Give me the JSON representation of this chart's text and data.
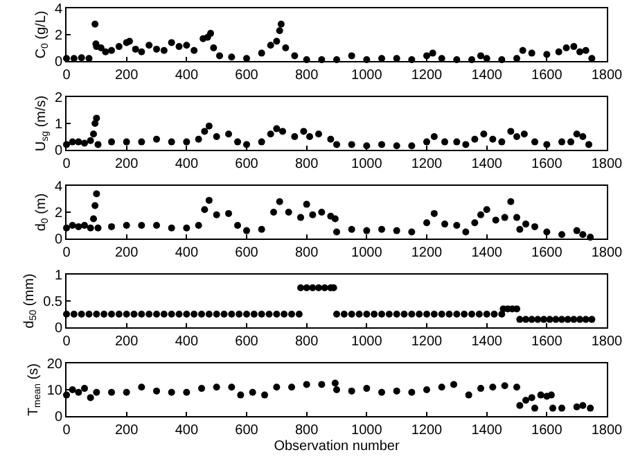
{
  "chart_data": [
    {
      "type": "scatter",
      "ylabel": "C$_{0}$ (g/L)",
      "xlim": [
        0,
        1800
      ],
      "xticks": [
        0,
        200,
        400,
        600,
        800,
        1000,
        1200,
        1400,
        1600,
        1800
      ],
      "ylim": [
        0,
        4
      ],
      "yticks": [
        0,
        2,
        4
      ],
      "marker": "circle",
      "series": [
        {
          "color": "#000000",
          "x": [
            0,
            25,
            50,
            75,
            95,
            98,
            100,
            115,
            130,
            150,
            175,
            200,
            210,
            230,
            250,
            275,
            300,
            325,
            350,
            375,
            400,
            425,
            455,
            470,
            480,
            490,
            510,
            550,
            600,
            650,
            680,
            700,
            710,
            715,
            730,
            760,
            800,
            850,
            900,
            950,
            1000,
            1050,
            1100,
            1150,
            1200,
            1220,
            1250,
            1300,
            1350,
            1380,
            1400,
            1450,
            1500,
            1520,
            1550,
            1600,
            1640,
            1665,
            1690,
            1710,
            1730,
            1750
          ],
          "values": [
            0.2,
            0.2,
            0.25,
            0.2,
            2.8,
            1.3,
            1.1,
            1.0,
            0.7,
            0.8,
            1.1,
            1.4,
            1.5,
            0.9,
            0.7,
            1.2,
            0.9,
            0.8,
            1.4,
            1.1,
            1.2,
            0.8,
            1.7,
            1.8,
            2.1,
            1.0,
            0.4,
            0.3,
            0.2,
            0.6,
            1.2,
            1.5,
            2.3,
            2.8,
            1.0,
            0.4,
            0.1,
            0.1,
            0.1,
            0.4,
            0.1,
            0.2,
            0.2,
            0.1,
            0.4,
            0.6,
            0.2,
            0.1,
            0.1,
            0.4,
            0.2,
            0.1,
            0.2,
            0.8,
            0.6,
            0.5,
            0.7,
            1.0,
            1.1,
            0.7,
            0.8,
            0.2
          ]
        }
      ]
    },
    {
      "type": "scatter",
      "ylabel": "U$_{sg}$ (m/s)",
      "xlim": [
        0,
        1800
      ],
      "xticks": [
        0,
        200,
        400,
        600,
        800,
        1000,
        1200,
        1400,
        1600,
        1800
      ],
      "ylim": [
        0,
        2
      ],
      "yticks": [
        0,
        1,
        2
      ],
      "marker": "circle",
      "series": [
        {
          "color": "#000000",
          "x": [
            0,
            20,
            40,
            60,
            80,
            90,
            95,
            100,
            105,
            150,
            200,
            250,
            300,
            350,
            400,
            440,
            460,
            475,
            500,
            540,
            570,
            600,
            650,
            680,
            700,
            720,
            760,
            790,
            810,
            840,
            880,
            900,
            950,
            1000,
            1050,
            1100,
            1150,
            1200,
            1225,
            1260,
            1300,
            1330,
            1360,
            1390,
            1420,
            1450,
            1480,
            1500,
            1525,
            1560,
            1600,
            1650,
            1680,
            1700,
            1720,
            1740
          ],
          "values": [
            0.2,
            0.3,
            0.3,
            0.25,
            0.35,
            0.6,
            1.0,
            1.2,
            0.2,
            0.3,
            0.3,
            0.3,
            0.4,
            0.3,
            0.3,
            0.4,
            0.7,
            0.9,
            0.5,
            0.6,
            0.3,
            0.2,
            0.3,
            0.6,
            0.8,
            0.7,
            0.5,
            0.7,
            0.5,
            0.6,
            0.4,
            0.2,
            0.2,
            0.15,
            0.2,
            0.15,
            0.15,
            0.3,
            0.5,
            0.3,
            0.3,
            0.2,
            0.4,
            0.6,
            0.4,
            0.3,
            0.7,
            0.5,
            0.6,
            0.3,
            0.2,
            0.3,
            0.3,
            0.6,
            0.5,
            0.2
          ]
        }
      ]
    },
    {
      "type": "scatter",
      "ylabel": "d$_{0}$ (m)",
      "xlim": [
        0,
        1800
      ],
      "xticks": [
        0,
        200,
        400,
        600,
        800,
        1000,
        1200,
        1400,
        1600,
        1800
      ],
      "ylim": [
        0,
        4
      ],
      "yticks": [
        0,
        2,
        4
      ],
      "marker": "circle",
      "series": [
        {
          "color": "#000000",
          "x": [
            0,
            20,
            40,
            60,
            80,
            90,
            95,
            100,
            105,
            150,
            200,
            250,
            300,
            350,
            400,
            440,
            460,
            475,
            500,
            540,
            570,
            600,
            650,
            690,
            710,
            740,
            780,
            800,
            820,
            850,
            880,
            895,
            900,
            950,
            1000,
            1050,
            1100,
            1150,
            1200,
            1225,
            1260,
            1300,
            1330,
            1360,
            1380,
            1400,
            1430,
            1460,
            1480,
            1500,
            1510,
            1530,
            1560,
            1600,
            1650,
            1700,
            1720,
            1745
          ],
          "values": [
            0.8,
            1.0,
            0.9,
            1.0,
            0.8,
            1.5,
            2.5,
            3.4,
            0.8,
            0.9,
            1.0,
            1.0,
            1.0,
            0.8,
            0.8,
            1.0,
            2.2,
            2.9,
            1.8,
            1.9,
            1.0,
            0.6,
            0.7,
            2.0,
            2.8,
            2.0,
            1.6,
            2.6,
            1.8,
            2.0,
            1.7,
            1.5,
            0.5,
            0.7,
            0.6,
            0.7,
            0.6,
            0.5,
            1.2,
            1.9,
            1.1,
            1.0,
            0.5,
            1.2,
            1.8,
            2.2,
            1.4,
            1.6,
            2.8,
            1.6,
            0.7,
            1.1,
            0.9,
            0.5,
            0.3,
            0.6,
            0.3,
            0.1
          ]
        }
      ]
    },
    {
      "type": "scatter",
      "ylabel": "d$_{50}$ (mm)",
      "xlim": [
        0,
        1800
      ],
      "xticks": [
        0,
        200,
        400,
        600,
        800,
        1000,
        1200,
        1400,
        1600,
        1800
      ],
      "ylim": [
        0,
        1
      ],
      "yticks": [
        0,
        0.5,
        1
      ],
      "marker": "circle",
      "series": [
        {
          "color": "#000000",
          "x": [
            0,
            25,
            50,
            75,
            100,
            125,
            150,
            175,
            200,
            225,
            250,
            275,
            300,
            325,
            350,
            375,
            400,
            425,
            450,
            475,
            500,
            525,
            550,
            575,
            600,
            625,
            650,
            675,
            700,
            725,
            750,
            775,
            780,
            800,
            820,
            840,
            860,
            880,
            890,
            900,
            925,
            950,
            975,
            1000,
            1025,
            1050,
            1075,
            1100,
            1125,
            1150,
            1175,
            1200,
            1225,
            1250,
            1275,
            1300,
            1325,
            1350,
            1375,
            1400,
            1425,
            1450,
            1455,
            1470,
            1485,
            1500,
            1510,
            1530,
            1550,
            1570,
            1590,
            1610,
            1630,
            1650,
            1670,
            1690,
            1710,
            1730,
            1750
          ],
          "values": [
            0.25,
            0.25,
            0.25,
            0.25,
            0.25,
            0.25,
            0.25,
            0.25,
            0.25,
            0.25,
            0.25,
            0.25,
            0.25,
            0.25,
            0.25,
            0.25,
            0.25,
            0.25,
            0.25,
            0.25,
            0.25,
            0.25,
            0.25,
            0.25,
            0.25,
            0.25,
            0.25,
            0.25,
            0.25,
            0.25,
            0.25,
            0.25,
            0.75,
            0.75,
            0.75,
            0.75,
            0.75,
            0.75,
            0.75,
            0.25,
            0.25,
            0.25,
            0.25,
            0.25,
            0.25,
            0.25,
            0.25,
            0.25,
            0.25,
            0.25,
            0.25,
            0.25,
            0.25,
            0.25,
            0.25,
            0.25,
            0.25,
            0.25,
            0.25,
            0.25,
            0.25,
            0.25,
            0.35,
            0.35,
            0.35,
            0.35,
            0.15,
            0.15,
            0.15,
            0.15,
            0.15,
            0.15,
            0.15,
            0.15,
            0.15,
            0.15,
            0.15,
            0.15,
            0.15
          ]
        }
      ]
    },
    {
      "type": "scatter",
      "ylabel": "T$_{mean}$ (s)",
      "xlabel": "Observation number",
      "xlim": [
        0,
        1800
      ],
      "xticks": [
        0,
        200,
        400,
        600,
        800,
        1000,
        1200,
        1400,
        1600,
        1800
      ],
      "ylim": [
        0,
        20
      ],
      "yticks": [
        0,
        10,
        20
      ],
      "marker": "circle",
      "series": [
        {
          "color": "#000000",
          "x": [
            0,
            20,
            40,
            60,
            80,
            100,
            150,
            200,
            250,
            300,
            350,
            400,
            450,
            500,
            550,
            580,
            620,
            660,
            700,
            750,
            800,
            850,
            895,
            900,
            950,
            1000,
            1050,
            1100,
            1150,
            1200,
            1250,
            1290,
            1340,
            1380,
            1420,
            1460,
            1500,
            1510,
            1530,
            1550,
            1560,
            1580,
            1600,
            1615,
            1620,
            1650,
            1700,
            1720,
            1745
          ],
          "values": [
            8,
            10,
            9,
            10.5,
            7,
            9,
            9,
            9,
            11,
            9.5,
            9,
            9,
            10.5,
            11,
            11,
            8,
            9,
            8,
            11,
            11,
            12,
            12,
            12.5,
            10,
            9.5,
            10.5,
            9,
            9.5,
            9,
            10,
            11,
            12,
            8,
            10.5,
            11,
            11.5,
            11,
            4,
            6,
            7,
            3,
            8,
            7.5,
            8,
            3,
            3,
            3.5,
            4,
            3
          ]
        }
      ]
    }
  ]
}
